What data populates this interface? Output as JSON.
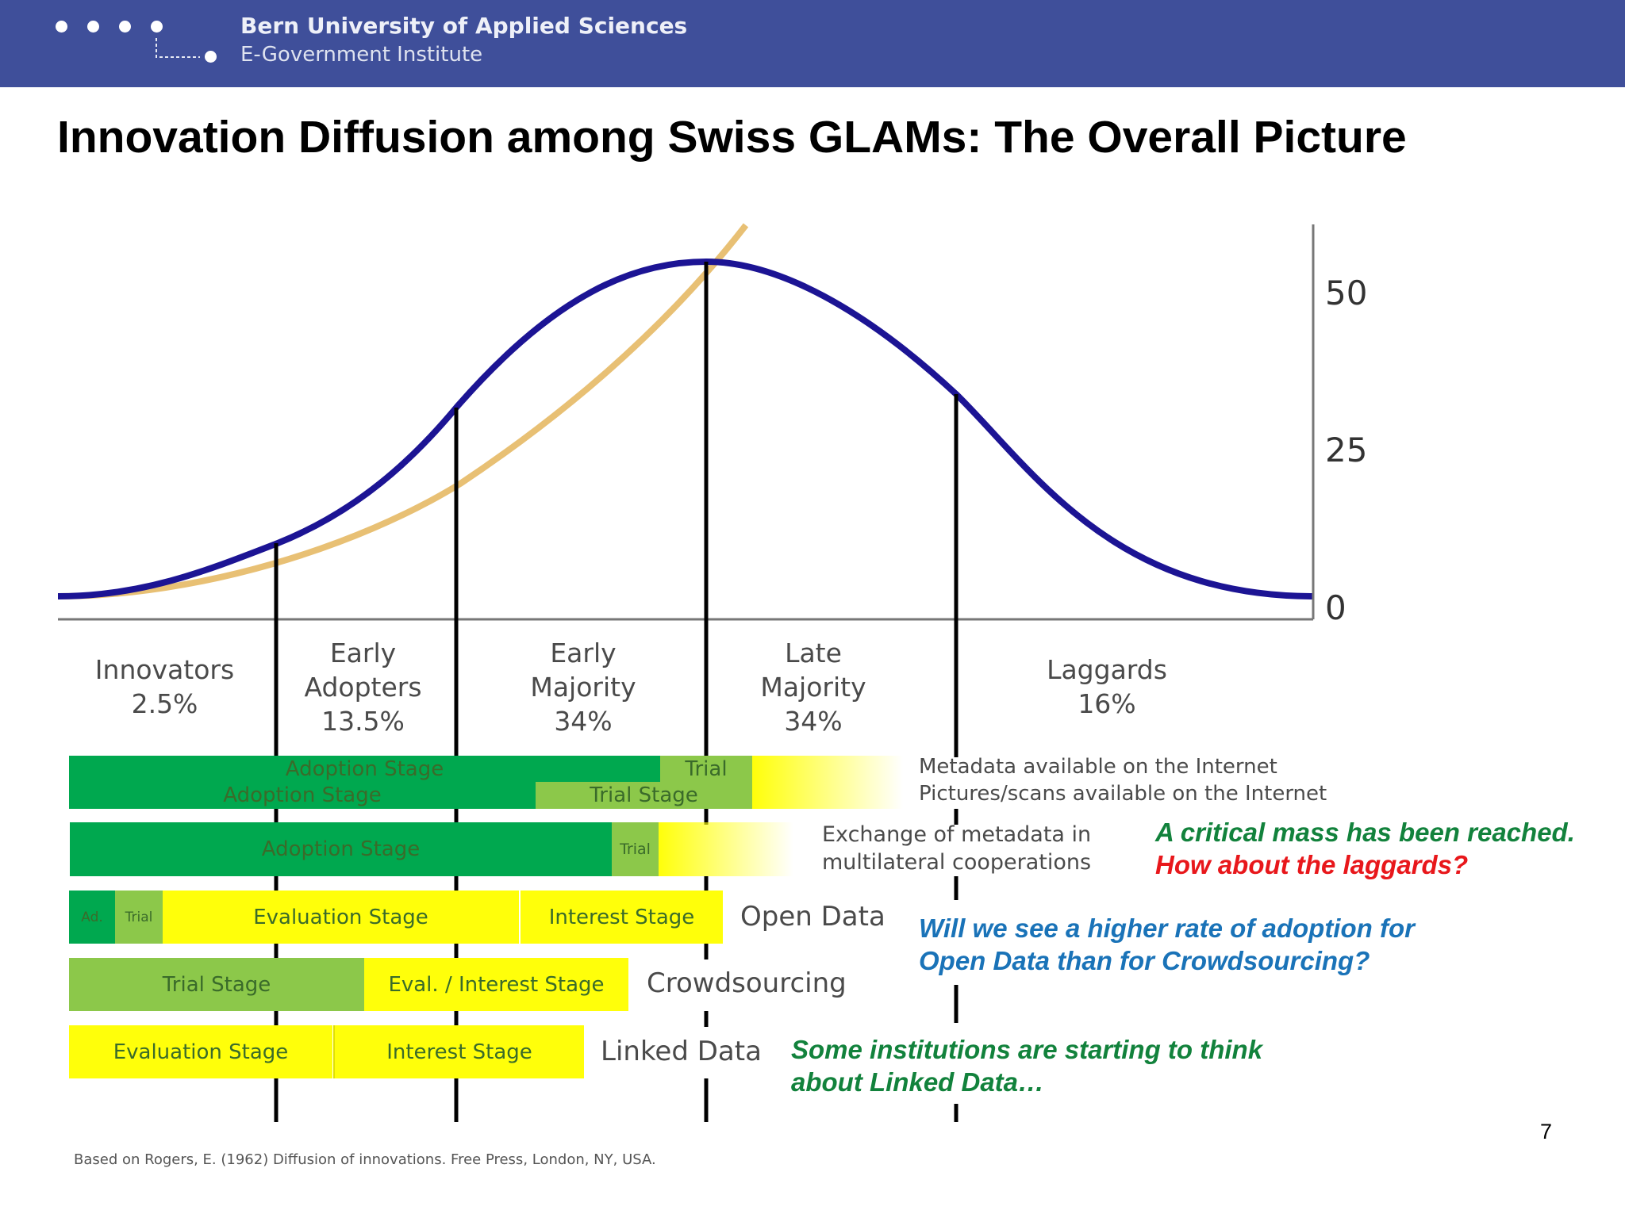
{
  "header": {
    "org": "Bern University of Applied Sciences",
    "institute": "E-Government Institute"
  },
  "title": "Innovation Diffusion among Swiss GLAMs: The Overall Picture",
  "colors": {
    "header_bg": "#3f4f9a",
    "bell_curve": "#1c1494",
    "s_curve": "#e8c074",
    "adoption": "#00a84f",
    "trial": "#8cc84a",
    "evaluation": "#ffff0a"
  },
  "axis": {
    "ticks": [
      "50",
      "25",
      "0"
    ]
  },
  "categories": [
    {
      "name": "Innovators",
      "pct": "2.5%"
    },
    {
      "name": "Early Adopters",
      "pct": "13.5%"
    },
    {
      "name": "Early Majority",
      "pct": "34%"
    },
    {
      "name": "Late Majority",
      "pct": "34%"
    },
    {
      "name": "Laggards",
      "pct": "16%"
    }
  ],
  "rows": {
    "metadata": {
      "bars": [
        "Adoption Stage",
        "Trial",
        "Adoption Stage",
        "Trial Stage"
      ],
      "label1": "Metadata available on the Internet",
      "label2": "Pictures/scans available on the Internet"
    },
    "exchange": {
      "bars": [
        "Adoption Stage",
        "Trial"
      ],
      "label1": "Exchange of metadata in",
      "label2": "multilateral cooperations"
    },
    "open_data": {
      "bars": [
        "Ad.",
        "Trial",
        "Evaluation Stage",
        "Interest Stage"
      ],
      "label": "Open Data"
    },
    "crowdsourcing": {
      "bars": [
        "Trial Stage",
        "Eval. / Interest Stage"
      ],
      "label": "Crowdsourcing"
    },
    "linked_data": {
      "bars": [
        "Evaluation Stage",
        "Interest Stage"
      ],
      "label": "Linked Data"
    }
  },
  "notes": {
    "critical_mass": "A critical mass has been reached.",
    "laggards": "How about the laggards?",
    "open_data_q1": "Will we see a higher rate of adoption for",
    "open_data_q2": "Open Data than for Crowdsourcing?",
    "linked_data1": "Some institutions are starting to think",
    "linked_data2": "about Linked Data…"
  },
  "source": "Based on Rogers, E. (1962) Diffusion of innovations. Free Press, London, NY, USA.",
  "page_number": "7"
}
